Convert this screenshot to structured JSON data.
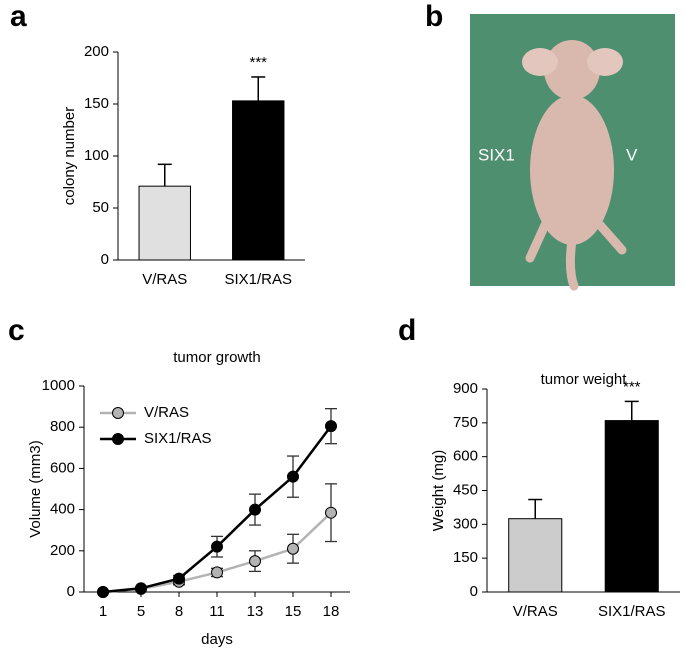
{
  "panels": [
    "a",
    "b",
    "c",
    "d"
  ],
  "photo": {
    "labels": [
      "SIX1",
      "V"
    ]
  },
  "chart_data": [
    {
      "type": "bar",
      "y_label": "colony number",
      "categories": [
        "V/RAS",
        "SIX1/RAS"
      ],
      "values": [
        71,
        153
      ],
      "errors": [
        21,
        23
      ],
      "colors": [
        "#e0e0e0",
        "#000000"
      ],
      "annotation": "***",
      "ylim": [
        0,
        200
      ],
      "yticks": [
        0,
        50,
        100,
        150,
        200
      ]
    },
    {
      "type": "line",
      "title": "tumor growth",
      "x_label": "days",
      "y_label": "Volume (mm3)",
      "categories": [
        "1",
        "5",
        "8",
        "11",
        "13",
        "15",
        "18"
      ],
      "legend": "upper left",
      "series": [
        {
          "name": "V/RAS",
          "color": "#b3b3b3",
          "values": [
            0,
            15,
            50,
            95,
            150,
            210,
            385
          ],
          "errors": [
            0,
            5,
            15,
            20,
            50,
            70,
            140
          ]
        },
        {
          "name": "SIX1/RAS",
          "color": "#000000",
          "values": [
            0,
            18,
            65,
            220,
            400,
            560,
            805
          ],
          "errors": [
            0,
            5,
            15,
            50,
            75,
            100,
            85
          ]
        }
      ],
      "ylim": [
        0,
        1000
      ],
      "yticks": [
        0,
        200,
        400,
        600,
        800,
        1000
      ]
    },
    {
      "type": "bar",
      "title": "tumor weight",
      "y_label": "Weight (mg)",
      "categories": [
        "V/RAS",
        "SIX1/RAS"
      ],
      "values": [
        325,
        760
      ],
      "errors": [
        85,
        85
      ],
      "colors": [
        "#cccccc",
        "#000000"
      ],
      "annotation": "***",
      "ylim": [
        0,
        900
      ],
      "yticks": [
        0,
        150,
        300,
        450,
        600,
        750,
        900
      ]
    }
  ]
}
